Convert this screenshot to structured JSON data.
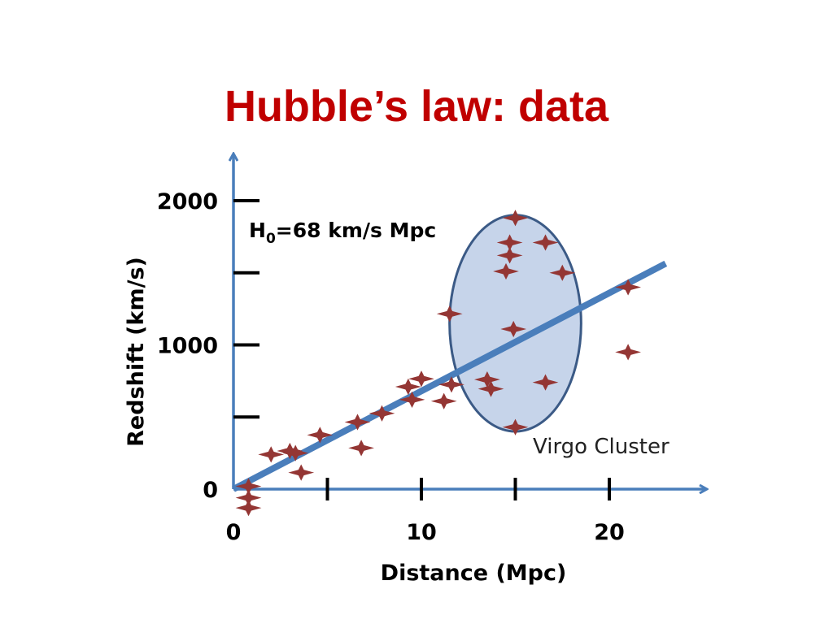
{
  "slide": {
    "title": "Hubble’s law: data"
  },
  "colors": {
    "title": "#c00000",
    "axis": "#4a7ebb",
    "fit_line": "#4a7ebb",
    "marker": "#943634",
    "ellipse_fill": "#c6d4ea",
    "ellipse_stroke": "#3b5a86"
  },
  "chart_data": {
    "type": "scatter",
    "xlabel": "Distance (Mpc)",
    "ylabel": "Redshift (km/s)",
    "xlim": [
      0,
      25
    ],
    "ylim": [
      0,
      2300
    ],
    "x_ticks": [
      0,
      5,
      10,
      15,
      20
    ],
    "x_tick_labels": [
      "0",
      "10",
      "20"
    ],
    "x_tick_label_values": [
      0,
      10,
      20
    ],
    "y_ticks": [
      0,
      500,
      1000,
      1500,
      2000
    ],
    "y_tick_labels": [
      "0",
      "1000",
      "2000"
    ],
    "y_tick_label_values": [
      0,
      1000,
      2000
    ],
    "annotation": {
      "prefix": "H",
      "subscript": "0",
      "suffix": "=68 km/s Mpc"
    },
    "fit_line": {
      "slope": 68,
      "x_range": [
        0,
        23
      ]
    },
    "cluster": {
      "label": "Virgo Cluster",
      "center": [
        15,
        1150
      ],
      "radius_x": 3.5,
      "radius_y": 750
    },
    "points": [
      {
        "x": 0.8,
        "y": 20
      },
      {
        "x": 0.8,
        "y": -60
      },
      {
        "x": 0.8,
        "y": -130
      },
      {
        "x": 2.0,
        "y": 240
      },
      {
        "x": 3.0,
        "y": 265
      },
      {
        "x": 3.3,
        "y": 250
      },
      {
        "x": 3.6,
        "y": 115
      },
      {
        "x": 4.6,
        "y": 375
      },
      {
        "x": 6.6,
        "y": 465
      },
      {
        "x": 6.8,
        "y": 285
      },
      {
        "x": 7.9,
        "y": 525
      },
      {
        "x": 9.3,
        "y": 710
      },
      {
        "x": 9.5,
        "y": 620
      },
      {
        "x": 10.0,
        "y": 765
      },
      {
        "x": 11.2,
        "y": 610
      },
      {
        "x": 11.6,
        "y": 725
      },
      {
        "x": 11.5,
        "y": 1215
      },
      {
        "x": 13.5,
        "y": 760
      },
      {
        "x": 13.7,
        "y": 695
      },
      {
        "x": 14.5,
        "y": 1510
      },
      {
        "x": 14.7,
        "y": 1620
      },
      {
        "x": 14.7,
        "y": 1710
      },
      {
        "x": 15.0,
        "y": 1880
      },
      {
        "x": 14.9,
        "y": 1110
      },
      {
        "x": 15.0,
        "y": 430
      },
      {
        "x": 16.6,
        "y": 1710
      },
      {
        "x": 16.6,
        "y": 740
      },
      {
        "x": 17.5,
        "y": 1500
      },
      {
        "x": 21.0,
        "y": 1400
      },
      {
        "x": 21.0,
        "y": 950
      }
    ]
  }
}
